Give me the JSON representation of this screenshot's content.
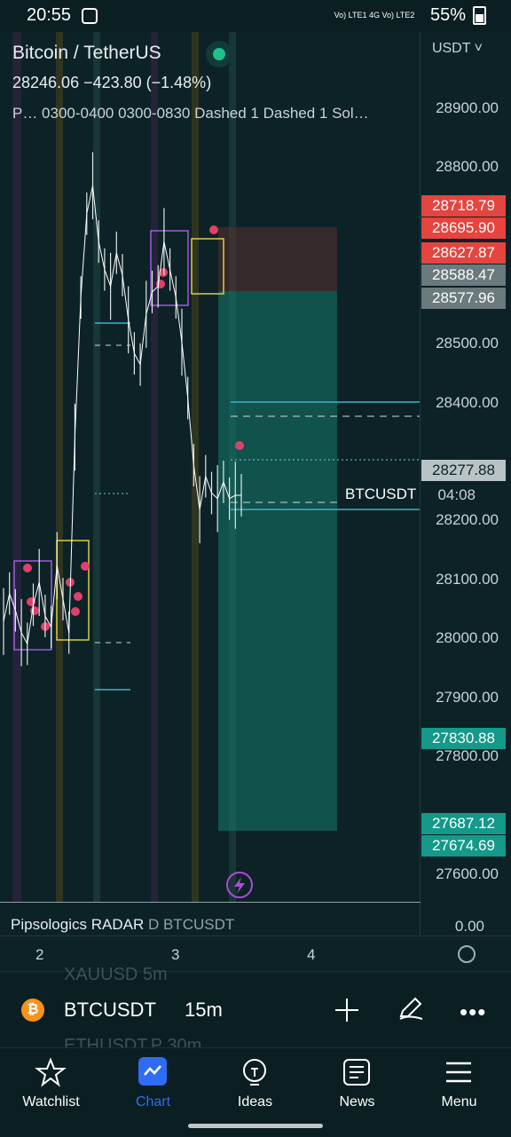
{
  "status": {
    "time": "20:55",
    "network_label": "Vo) LTE1 4G Vo) LTE2",
    "battery": "55%"
  },
  "header": {
    "title": "Bitcoin / TetherUS",
    "quote": "28246.06  −423.80 (−1.48%)",
    "indicators": "P… 0300-0400 0300-0830 Dashed 1 Dashed 1 Sol…",
    "currency": "USDT ˅"
  },
  "price_axis": {
    "ticks": [
      "28900.00",
      "28800.00",
      "28500.00",
      "28400.00",
      "28200.00",
      "28100.00",
      "28000.00",
      "27900.00",
      "27800.00",
      "27600.00"
    ],
    "tags": [
      {
        "text": "28718.79",
        "color": "#e5443f"
      },
      {
        "text": "28695.90",
        "color": "#e5443f"
      },
      {
        "text": "28627.87",
        "color": "#e5443f"
      },
      {
        "text": "28588.47",
        "color": "#6a7a7d"
      },
      {
        "text": "28577.96",
        "color": "#6a7a7d"
      },
      {
        "text": "28277.88",
        "color": "#b9c3c5"
      },
      {
        "text": "27830.88",
        "color": "#14998a"
      },
      {
        "text": "27687.12",
        "color": "#14998a"
      },
      {
        "text": "27674.69",
        "color": "#14998a"
      }
    ],
    "countdown": "04:08",
    "symbol_label": "BTCUSDT"
  },
  "radar": {
    "name": "Pipsologics RADAR",
    "sub": "D BTCUSDT",
    "value": "0.00"
  },
  "time_axis": [
    "2",
    "3",
    "4"
  ],
  "symbol_bar": {
    "symbol": "BTCUSDT",
    "interval": "15m",
    "ghost_top": "XAUUSD  5m",
    "ghost_bottom": "ETHUSDT.P  30m"
  },
  "nav": [
    {
      "label": "Watchlist",
      "icon": "star-icon"
    },
    {
      "label": "Chart",
      "icon": "chart-icon"
    },
    {
      "label": "Ideas",
      "icon": "lightbulb-icon"
    },
    {
      "label": "News",
      "icon": "news-icon"
    },
    {
      "label": "Menu",
      "icon": "menu-icon"
    }
  ],
  "chart_data": {
    "type": "line",
    "title": "Bitcoin / TetherUS",
    "ylim": [
      27550,
      28980
    ],
    "x": [
      0,
      1,
      2,
      3,
      4,
      5,
      6,
      7,
      8,
      9,
      10,
      11,
      12,
      13,
      14,
      15,
      16,
      17,
      18,
      19,
      20,
      21,
      22,
      23,
      24,
      25,
      26,
      27,
      28,
      29,
      30,
      31,
      32,
      33,
      34,
      35,
      36,
      37,
      38,
      39,
      40
    ],
    "series": [
      {
        "values": [
          28020,
          28070,
          28040,
          28000,
          27980,
          28050,
          28090,
          28030,
          28010,
          28120,
          28060,
          28000,
          28350,
          28600,
          28750,
          28800,
          28700,
          28650,
          28620,
          28680,
          28640,
          28560,
          28500,
          28480,
          28570,
          28610,
          28620,
          28700,
          28650,
          28600,
          28520,
          28420,
          28300,
          28220,
          28280,
          28250,
          28240,
          28270,
          28240,
          28246,
          28246
        ]
      }
    ]
  }
}
